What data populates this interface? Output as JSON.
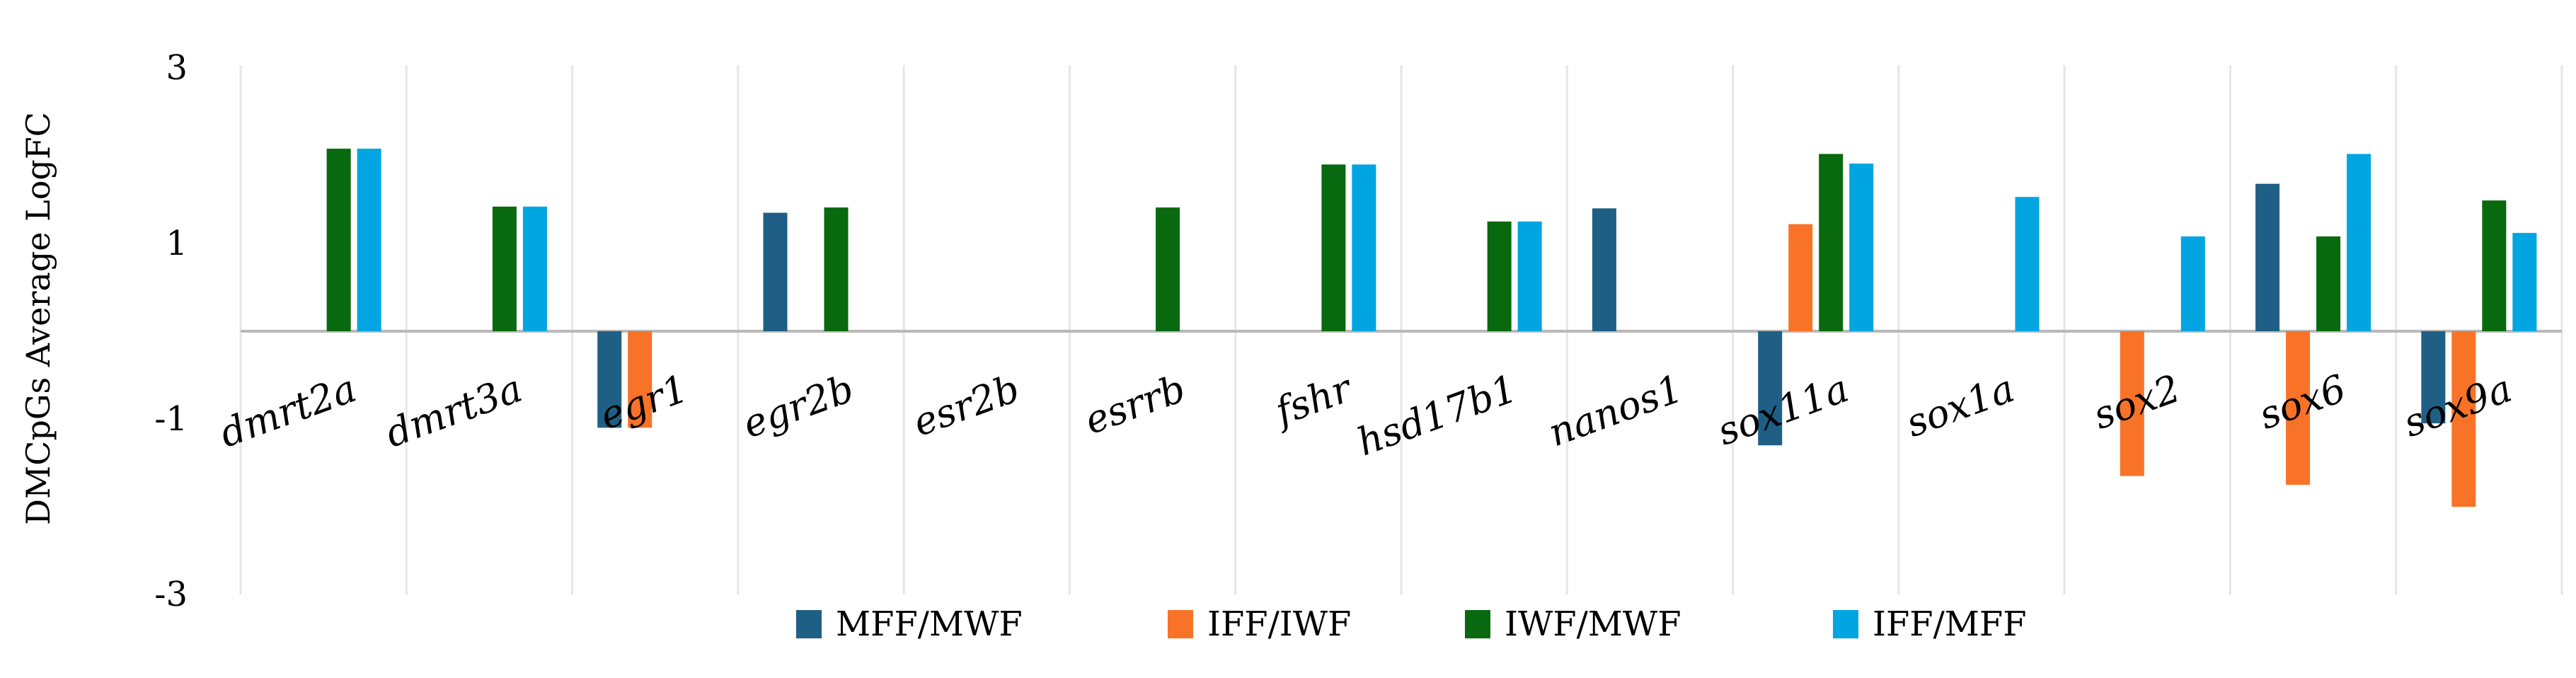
{
  "chart_data": {
    "type": "bar",
    "ylabel": "DMCpGs Average LogFC",
    "ylim": [
      -3,
      3
    ],
    "yticks": [
      3,
      1,
      -1,
      -3
    ],
    "grid": {
      "horizontal": false,
      "vertical_category_separators": true,
      "zero_line": true
    },
    "legend_position": "bottom",
    "categories": [
      "dmrt2a",
      "dmrt3a",
      "egr1",
      "egr2b",
      "esr2b",
      "esrrb",
      "fshr",
      "hsd17b1",
      "nanos1",
      "sox11a",
      "sox1a",
      "sox2",
      "sox6",
      "sox9a"
    ],
    "series": [
      {
        "name": "MFF/MWF",
        "color": "#1f5f85",
        "values": [
          null,
          null,
          -1.1,
          1.35,
          null,
          null,
          null,
          null,
          1.4,
          -1.3,
          null,
          null,
          1.68,
          -1.05
        ]
      },
      {
        "name": "IFF/IWF",
        "color": "#f87327",
        "values": [
          null,
          null,
          -1.1,
          null,
          null,
          null,
          null,
          null,
          null,
          1.22,
          null,
          -1.65,
          -1.75,
          -2.0
        ]
      },
      {
        "name": "IWF/MWF",
        "color": "#08690f",
        "values": [
          2.08,
          1.42,
          null,
          1.41,
          null,
          1.41,
          1.9,
          1.25,
          null,
          2.02,
          null,
          null,
          1.08,
          1.49
        ]
      },
      {
        "name": "IFF/MFF",
        "color": "#00a5e1",
        "values": [
          2.08,
          1.42,
          null,
          null,
          null,
          null,
          1.9,
          1.25,
          null,
          1.91,
          1.53,
          1.08,
          2.02,
          1.12
        ]
      }
    ]
  }
}
